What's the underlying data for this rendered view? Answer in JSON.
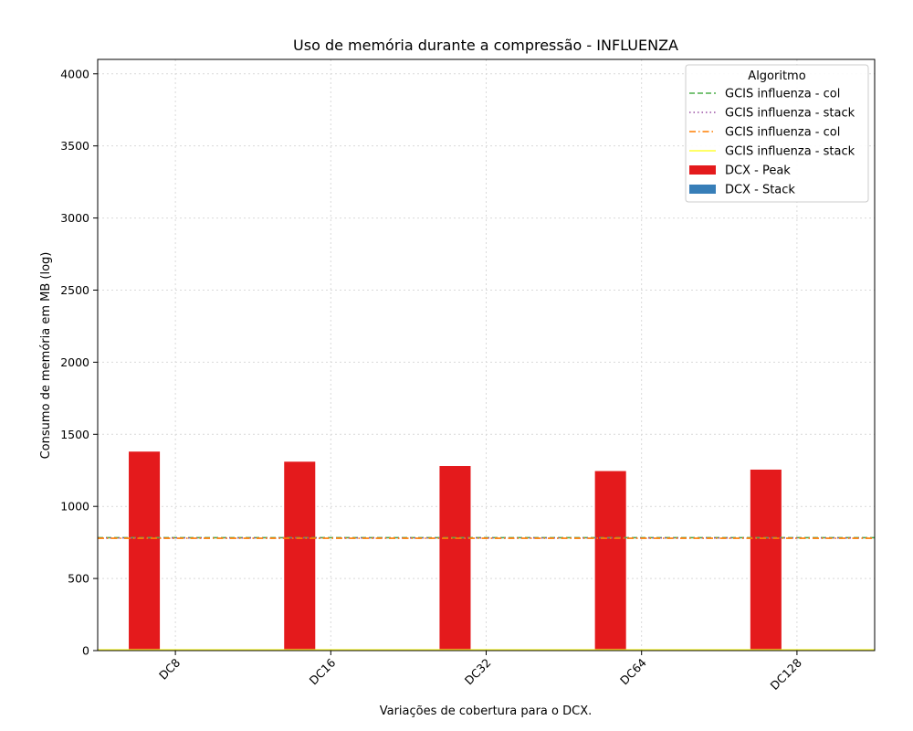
{
  "chart_data": {
    "type": "bar",
    "title": "Uso de memória durante a compressão -  INFLUENZA",
    "xlabel": "Variações de cobertura para o DCX.",
    "ylabel": "Consumo de memória em MB (log)",
    "ylim": [
      0,
      4100
    ],
    "yticks": [
      0,
      500,
      1000,
      1500,
      2000,
      2500,
      3000,
      3500,
      4000
    ],
    "grid": true,
    "legend_position": "top-right",
    "categories": [
      "DC8",
      "DC16",
      "DC32",
      "DC64",
      "DC128"
    ],
    "series": [
      {
        "name": "DCX - Peak",
        "values": [
          1380,
          1310,
          1280,
          1245,
          1255
        ],
        "color": "#e41a1c"
      },
      {
        "name": "DCX - Stack",
        "values": [
          4,
          4,
          4,
          4,
          4
        ],
        "color": "#377eb8"
      }
    ],
    "reference_lines": [
      {
        "name": "GCIS influenza - col",
        "value": 783,
        "color": "#4daf4a",
        "style": "dashed"
      },
      {
        "name": "GCIS influenza - stack",
        "value": 781,
        "color": "#984ea3",
        "style": "dotted"
      },
      {
        "name": "GCIS influenza - col",
        "value": 779,
        "color": "#ff7f00",
        "style": "dashdot"
      },
      {
        "name": "GCIS influenza - stack",
        "value": 5,
        "color": "#ffff33",
        "style": "solid"
      }
    ],
    "legend": {
      "title": "Algoritmo",
      "entries": [
        {
          "label": "GCIS influenza - col",
          "kind": "line",
          "color": "#4daf4a",
          "style": "dashed"
        },
        {
          "label": "GCIS influenza - stack",
          "kind": "line",
          "color": "#984ea3",
          "style": "dotted"
        },
        {
          "label": "GCIS influenza - col",
          "kind": "line",
          "color": "#ff7f00",
          "style": "dashdot"
        },
        {
          "label": "GCIS influenza - stack",
          "kind": "line",
          "color": "#ffff33",
          "style": "solid"
        },
        {
          "label": "DCX - Peak",
          "kind": "patch",
          "color": "#e41a1c"
        },
        {
          "label": "DCX - Stack",
          "kind": "patch",
          "color": "#377eb8"
        }
      ]
    }
  }
}
